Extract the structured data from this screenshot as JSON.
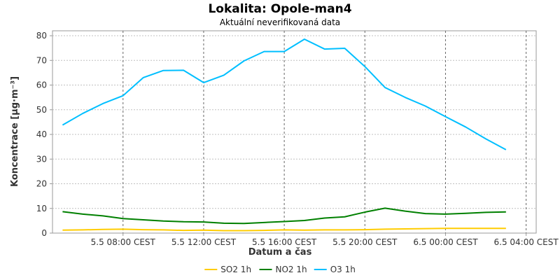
{
  "chart_data": {
    "type": "line",
    "title": "Lokalita: Opole-man4",
    "subtitle": "Aktuální neverifikovaná data",
    "xlabel": "Datum a čas",
    "ylabel": "Koncentrace [µg·m⁻³]",
    "x": [
      "2024-05-05 05:00",
      "2024-05-05 06:00",
      "2024-05-05 07:00",
      "2024-05-05 08:00",
      "2024-05-05 09:00",
      "2024-05-05 10:00",
      "2024-05-05 11:00",
      "2024-05-05 12:00",
      "2024-05-05 13:00",
      "2024-05-05 14:00",
      "2024-05-05 15:00",
      "2024-05-05 16:00",
      "2024-05-05 17:00",
      "2024-05-05 18:00",
      "2024-05-05 19:00",
      "2024-05-05 20:00",
      "2024-05-05 21:00",
      "2024-05-05 22:00",
      "2024-05-05 23:00",
      "2024-05-06 00:00",
      "2024-05-06 01:00",
      "2024-05-06 02:00",
      "2024-05-06 03:00"
    ],
    "xlim": [
      "2024-05-05 04:30",
      "2024-05-06 04:30"
    ],
    "x_ticks": [
      {
        "t": "2024-05-05 08:00",
        "label": "5.5 08:00 CEST"
      },
      {
        "t": "2024-05-05 12:00",
        "label": "5.5 12:00 CEST"
      },
      {
        "t": "2024-05-05 16:00",
        "label": "5.5 16:00 CEST"
      },
      {
        "t": "2024-05-05 20:00",
        "label": "5.5 20:00 CEST"
      },
      {
        "t": "2024-05-06 00:00",
        "label": "6.5 00:00 CEST"
      },
      {
        "t": "2024-05-06 04:00",
        "label": "6.5 04:00 CEST"
      }
    ],
    "ylim": [
      0,
      82
    ],
    "y_ticks": [
      0,
      10,
      20,
      30,
      40,
      50,
      60,
      70,
      80
    ],
    "grid": true,
    "legend": "bottom",
    "series": [
      {
        "name": "SO2 1h",
        "color": "#ffcc00",
        "values": [
          1.2,
          1.3,
          1.5,
          1.6,
          1.4,
          1.3,
          1.1,
          1.2,
          1.0,
          1.0,
          1.1,
          1.3,
          1.2,
          1.3,
          1.3,
          1.4,
          1.6,
          1.7,
          1.8,
          1.9,
          1.9,
          1.9,
          1.9
        ]
      },
      {
        "name": "NO2 1h",
        "color": "#008000",
        "values": [
          8.7,
          7.7,
          7.0,
          5.9,
          5.4,
          4.9,
          4.6,
          4.5,
          4.0,
          3.9,
          4.3,
          4.7,
          5.1,
          6.1,
          6.6,
          8.5,
          10.1,
          8.9,
          7.9,
          7.7,
          8.0,
          8.4,
          8.6
        ]
      },
      {
        "name": "O3 1h",
        "color": "#00bfff",
        "values": [
          43.8,
          48.5,
          52.5,
          55.7,
          63.0,
          65.9,
          66.0,
          61.0,
          64.0,
          69.8,
          73.6,
          73.6,
          78.6,
          74.6,
          74.9,
          67.5,
          59.0,
          55.0,
          51.5,
          47.2,
          43.0,
          38.2,
          33.8
        ]
      }
    ]
  }
}
